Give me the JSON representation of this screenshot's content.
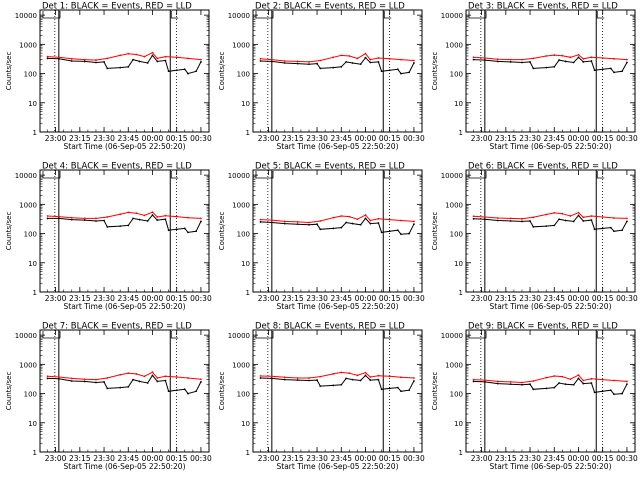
{
  "chart_data": [
    {
      "type": "line",
      "title": "Det 1: BLACK = Events, RED = LLD",
      "ylabel": "Counts/sec",
      "xlabel": "Start Time (06-Sep-05 22:50:20)",
      "x_ticks": [
        "23:00",
        "23:15",
        "23:30",
        "23:45",
        "00:00",
        "00:15",
        "00:30"
      ],
      "y_ticks": [
        "1",
        "10",
        "100",
        "1000",
        "10000"
      ],
      "ylim": [
        1,
        15000
      ],
      "yscale": "log",
      "grid": false,
      "series": [
        {
          "color": "#000000",
          "role": "events",
          "x": [
            "22:55",
            "23:02",
            "23:10",
            "23:18",
            "23:25",
            "23:30",
            "23:32",
            "23:40",
            "23:45",
            "23:48",
            "23:52",
            "23:57",
            "00:00",
            "00:03",
            "00:08",
            "00:10",
            "00:15",
            "00:20",
            "00:22",
            "00:27",
            "00:30"
          ],
          "values": [
            330,
            320,
            270,
            260,
            240,
            250,
            150,
            160,
            170,
            300,
            260,
            230,
            420,
            260,
            280,
            120,
            130,
            140,
            100,
            120,
            250
          ]
        },
        {
          "color": "#ff0000",
          "role": "lld",
          "x": [
            "22:55",
            "23:02",
            "23:10",
            "23:18",
            "23:25",
            "23:32",
            "23:40",
            "23:45",
            "23:50",
            "23:55",
            "00:00",
            "00:03",
            "00:08",
            "00:15",
            "00:22",
            "00:30"
          ],
          "values": [
            380,
            360,
            320,
            300,
            290,
            330,
            420,
            480,
            450,
            380,
            520,
            330,
            380,
            360,
            330,
            300
          ]
        }
      ]
    },
    {
      "type": "line",
      "title": "Det 2: BLACK = Events, RED = LLD",
      "ylabel": "Counts/sec",
      "xlabel": "Start Time (06-Sep-05 22:50:20)",
      "x_ticks": [
        "23:00",
        "23:15",
        "23:30",
        "23:45",
        "00:00",
        "00:15",
        "00:30"
      ],
      "y_ticks": [
        "1",
        "10",
        "100",
        "1000",
        "10000"
      ],
      "ylim": [
        1,
        15000
      ],
      "yscale": "log",
      "grid": false,
      "series": [
        {
          "color": "#000000",
          "role": "events",
          "x": [
            "22:55",
            "23:02",
            "23:10",
            "23:18",
            "23:25",
            "23:30",
            "23:32",
            "23:40",
            "23:45",
            "23:48",
            "23:52",
            "23:57",
            "00:00",
            "00:03",
            "00:08",
            "00:10",
            "00:15",
            "00:20",
            "00:22",
            "00:27",
            "00:30"
          ],
          "values": [
            270,
            260,
            230,
            220,
            210,
            220,
            150,
            160,
            170,
            250,
            230,
            210,
            350,
            240,
            250,
            120,
            130,
            140,
            100,
            110,
            230
          ]
        },
        {
          "color": "#ff0000",
          "role": "lld",
          "x": [
            "22:55",
            "23:02",
            "23:10",
            "23:18",
            "23:25",
            "23:32",
            "23:40",
            "23:45",
            "23:50",
            "23:55",
            "00:00",
            "00:03",
            "00:08",
            "00:15",
            "00:22",
            "00:30"
          ],
          "values": [
            320,
            300,
            270,
            260,
            250,
            280,
            360,
            420,
            400,
            330,
            480,
            300,
            340,
            320,
            300,
            280
          ]
        }
      ]
    },
    {
      "type": "line",
      "title": "Det 3: BLACK = Events, RED = LLD",
      "ylabel": "Counts/sec",
      "xlabel": "Start Time (06-Sep-05 22:50:20)",
      "x_ticks": [
        "23:00",
        "23:15",
        "23:30",
        "23:45",
        "00:00",
        "00:15",
        "00:30"
      ],
      "y_ticks": [
        "1",
        "10",
        "100",
        "1000",
        "10000"
      ],
      "ylim": [
        1,
        15000
      ],
      "yscale": "log",
      "grid": false,
      "series": [
        {
          "color": "#000000",
          "role": "events",
          "x": [
            "22:55",
            "23:02",
            "23:10",
            "23:18",
            "23:25",
            "23:30",
            "23:32",
            "23:40",
            "23:45",
            "23:48",
            "23:52",
            "23:57",
            "00:00",
            "00:03",
            "00:08",
            "00:10",
            "00:15",
            "00:20",
            "00:22",
            "00:27",
            "00:30"
          ],
          "values": [
            300,
            290,
            260,
            250,
            240,
            250,
            150,
            160,
            170,
            290,
            260,
            240,
            360,
            250,
            270,
            130,
            140,
            150,
            110,
            120,
            240
          ]
        },
        {
          "color": "#ff0000",
          "role": "lld",
          "x": [
            "22:55",
            "23:02",
            "23:10",
            "23:18",
            "23:25",
            "23:32",
            "23:40",
            "23:45",
            "23:50",
            "23:55",
            "00:00",
            "00:03",
            "00:08",
            "00:15",
            "00:22",
            "00:30"
          ],
          "values": [
            360,
            340,
            310,
            300,
            300,
            330,
            400,
            430,
            410,
            360,
            440,
            320,
            360,
            340,
            320,
            300
          ]
        }
      ]
    },
    {
      "type": "line",
      "title": "Det 4: BLACK = Events, RED = LLD",
      "ylabel": "Counts/sec",
      "xlabel": "Start Time (06-Sep-05 22:50:20)",
      "x_ticks": [
        "23:00",
        "23:15",
        "23:30",
        "23:45",
        "00:00",
        "00:15",
        "00:30"
      ],
      "y_ticks": [
        "1",
        "10",
        "100",
        "1000",
        "10000"
      ],
      "ylim": [
        1,
        15000
      ],
      "yscale": "log",
      "grid": false,
      "series": [
        {
          "color": "#000000",
          "role": "events",
          "x": [
            "22:55",
            "23:02",
            "23:10",
            "23:18",
            "23:25",
            "23:30",
            "23:32",
            "23:40",
            "23:45",
            "23:48",
            "23:52",
            "23:57",
            "00:00",
            "00:03",
            "00:08",
            "00:10",
            "00:15",
            "00:20",
            "00:22",
            "00:27",
            "00:30"
          ],
          "values": [
            330,
            330,
            300,
            290,
            270,
            280,
            170,
            180,
            190,
            330,
            300,
            270,
            430,
            290,
            310,
            130,
            140,
            150,
            110,
            120,
            260
          ]
        },
        {
          "color": "#ff0000",
          "role": "lld",
          "x": [
            "22:55",
            "23:02",
            "23:10",
            "23:18",
            "23:25",
            "23:32",
            "23:40",
            "23:45",
            "23:50",
            "23:55",
            "00:00",
            "00:03",
            "00:08",
            "00:15",
            "00:22",
            "00:30"
          ],
          "values": [
            400,
            380,
            350,
            330,
            330,
            370,
            460,
            530,
            500,
            420,
            540,
            370,
            410,
            380,
            350,
            330
          ]
        }
      ]
    },
    {
      "type": "line",
      "title": "Det 5: BLACK = Events, RED = LLD",
      "ylabel": "Counts/sec",
      "xlabel": "Start Time (06-Sep-05 22:50:20)",
      "x_ticks": [
        "23:00",
        "23:15",
        "23:30",
        "23:45",
        "00:00",
        "00:15",
        "00:30"
      ],
      "y_ticks": [
        "1",
        "10",
        "100",
        "1000",
        "10000"
      ],
      "ylim": [
        1,
        15000
      ],
      "yscale": "log",
      "grid": false,
      "series": [
        {
          "color": "#000000",
          "role": "events",
          "x": [
            "22:55",
            "23:02",
            "23:10",
            "23:18",
            "23:25",
            "23:30",
            "23:32",
            "23:40",
            "23:45",
            "23:48",
            "23:52",
            "23:57",
            "00:00",
            "00:03",
            "00:08",
            "00:10",
            "00:15",
            "00:20",
            "00:22",
            "00:27",
            "00:30"
          ],
          "values": [
            250,
            240,
            220,
            210,
            200,
            210,
            140,
            150,
            160,
            240,
            220,
            200,
            330,
            220,
            230,
            110,
            120,
            130,
            95,
            100,
            210
          ]
        },
        {
          "color": "#ff0000",
          "role": "lld",
          "x": [
            "22:55",
            "23:02",
            "23:10",
            "23:18",
            "23:25",
            "23:32",
            "23:40",
            "23:45",
            "23:50",
            "23:55",
            "00:00",
            "00:03",
            "00:08",
            "00:15",
            "00:22",
            "00:30"
          ],
          "values": [
            300,
            290,
            260,
            250,
            240,
            270,
            350,
            400,
            380,
            310,
            430,
            280,
            320,
            300,
            280,
            260
          ]
        }
      ]
    },
    {
      "type": "line",
      "title": "Det 6: BLACK = Events, RED = LLD",
      "ylabel": "Counts/sec",
      "xlabel": "Start Time (06-Sep-05 22:50:20)",
      "x_ticks": [
        "23:00",
        "23:15",
        "23:30",
        "23:45",
        "00:00",
        "00:15",
        "00:30"
      ],
      "y_ticks": [
        "1",
        "10",
        "100",
        "1000",
        "10000"
      ],
      "ylim": [
        1,
        15000
      ],
      "yscale": "log",
      "grid": false,
      "series": [
        {
          "color": "#000000",
          "role": "events",
          "x": [
            "22:55",
            "23:02",
            "23:10",
            "23:18",
            "23:25",
            "23:30",
            "23:32",
            "23:40",
            "23:45",
            "23:48",
            "23:52",
            "23:57",
            "00:00",
            "00:03",
            "00:08",
            "00:10",
            "00:15",
            "00:20",
            "00:22",
            "00:27",
            "00:30"
          ],
          "values": [
            320,
            310,
            280,
            270,
            260,
            270,
            170,
            180,
            190,
            310,
            280,
            260,
            420,
            270,
            290,
            140,
            150,
            160,
            120,
            130,
            260
          ]
        },
        {
          "color": "#ff0000",
          "role": "lld",
          "x": [
            "22:55",
            "23:02",
            "23:10",
            "23:18",
            "23:25",
            "23:32",
            "23:40",
            "23:45",
            "23:50",
            "23:55",
            "00:00",
            "00:03",
            "00:08",
            "00:15",
            "00:22",
            "00:30"
          ],
          "values": [
            390,
            370,
            340,
            330,
            320,
            360,
            450,
            510,
            480,
            400,
            520,
            360,
            400,
            370,
            340,
            330
          ]
        }
      ]
    },
    {
      "type": "line",
      "title": "Det 7: BLACK = Events, RED = LLD",
      "ylabel": "Counts/sec",
      "xlabel": "Start Time (06-Sep-05 22:50:20)",
      "x_ticks": [
        "23:00",
        "23:15",
        "23:30",
        "23:45",
        "00:00",
        "00:15",
        "00:30"
      ],
      "y_ticks": [
        "1",
        "10",
        "100",
        "1000",
        "10000"
      ],
      "ylim": [
        1,
        15000
      ],
      "yscale": "log",
      "grid": false,
      "series": [
        {
          "color": "#000000",
          "role": "events",
          "x": [
            "22:55",
            "23:02",
            "23:10",
            "23:18",
            "23:25",
            "23:30",
            "23:32",
            "23:40",
            "23:45",
            "23:48",
            "23:52",
            "23:57",
            "00:00",
            "00:03",
            "00:08",
            "00:10",
            "00:15",
            "00:20",
            "00:22",
            "00:27",
            "00:30"
          ],
          "values": [
            330,
            320,
            270,
            260,
            240,
            250,
            150,
            160,
            170,
            300,
            260,
            230,
            420,
            260,
            280,
            120,
            130,
            140,
            100,
            120,
            250
          ]
        },
        {
          "color": "#ff0000",
          "role": "lld",
          "x": [
            "22:55",
            "23:02",
            "23:10",
            "23:18",
            "23:25",
            "23:32",
            "23:40",
            "23:45",
            "23:50",
            "23:55",
            "00:00",
            "00:03",
            "00:08",
            "00:15",
            "00:22",
            "00:30"
          ],
          "values": [
            390,
            370,
            330,
            310,
            300,
            340,
            440,
            500,
            470,
            390,
            540,
            340,
            390,
            370,
            340,
            310
          ]
        }
      ]
    },
    {
      "type": "line",
      "title": "Det 8: BLACK = Events, RED = LLD",
      "ylabel": "Counts/sec",
      "xlabel": "Start Time (06-Sep-05 22:50:20)",
      "x_ticks": [
        "23:00",
        "23:15",
        "23:30",
        "23:45",
        "00:00",
        "00:15",
        "00:30"
      ],
      "y_ticks": [
        "1",
        "10",
        "100",
        "1000",
        "10000"
      ],
      "ylim": [
        1,
        15000
      ],
      "yscale": "log",
      "grid": false,
      "series": [
        {
          "color": "#000000",
          "role": "events",
          "x": [
            "22:55",
            "23:02",
            "23:10",
            "23:18",
            "23:25",
            "23:30",
            "23:32",
            "23:40",
            "23:45",
            "23:48",
            "23:52",
            "23:57",
            "00:00",
            "00:03",
            "00:08",
            "00:10",
            "00:15",
            "00:20",
            "00:22",
            "00:27",
            "00:30"
          ],
          "values": [
            340,
            330,
            300,
            290,
            280,
            290,
            180,
            190,
            200,
            330,
            300,
            280,
            420,
            290,
            300,
            140,
            150,
            160,
            120,
            130,
            270
          ]
        },
        {
          "color": "#ff0000",
          "role": "lld",
          "x": [
            "22:55",
            "23:02",
            "23:10",
            "23:18",
            "23:25",
            "23:32",
            "23:40",
            "23:45",
            "23:50",
            "23:55",
            "00:00",
            "00:03",
            "00:08",
            "00:15",
            "00:22",
            "00:30"
          ],
          "values": [
            400,
            390,
            360,
            340,
            340,
            380,
            470,
            530,
            500,
            420,
            520,
            370,
            410,
            390,
            360,
            340
          ]
        }
      ]
    },
    {
      "type": "line",
      "title": "Det 9: BLACK = Events, RED = LLD",
      "ylabel": "Counts/sec",
      "xlabel": "Start Time (06-Sep-05 22:50:20)",
      "x_ticks": [
        "23:00",
        "23:15",
        "23:30",
        "23:45",
        "00:00",
        "00:15",
        "00:30"
      ],
      "y_ticks": [
        "1",
        "10",
        "100",
        "1000",
        "10000"
      ],
      "ylim": [
        1,
        15000
      ],
      "yscale": "log",
      "grid": false,
      "series": [
        {
          "color": "#000000",
          "role": "events",
          "x": [
            "22:55",
            "23:02",
            "23:10",
            "23:18",
            "23:25",
            "23:30",
            "23:32",
            "23:40",
            "23:45",
            "23:48",
            "23:52",
            "23:57",
            "00:00",
            "00:03",
            "00:08",
            "00:10",
            "00:15",
            "00:20",
            "00:22",
            "00:27",
            "00:30"
          ],
          "values": [
            260,
            250,
            220,
            210,
            200,
            210,
            140,
            150,
            160,
            230,
            210,
            200,
            330,
            220,
            230,
            110,
            120,
            130,
            95,
            100,
            210
          ]
        },
        {
          "color": "#ff0000",
          "role": "lld",
          "x": [
            "22:55",
            "23:02",
            "23:10",
            "23:18",
            "23:25",
            "23:32",
            "23:40",
            "23:45",
            "23:50",
            "23:55",
            "00:00",
            "00:03",
            "00:08",
            "00:15",
            "00:22",
            "00:30"
          ],
          "values": [
            300,
            290,
            260,
            250,
            240,
            270,
            350,
            400,
            380,
            310,
            430,
            280,
            320,
            300,
            280,
            260
          ]
        }
      ]
    }
  ]
}
